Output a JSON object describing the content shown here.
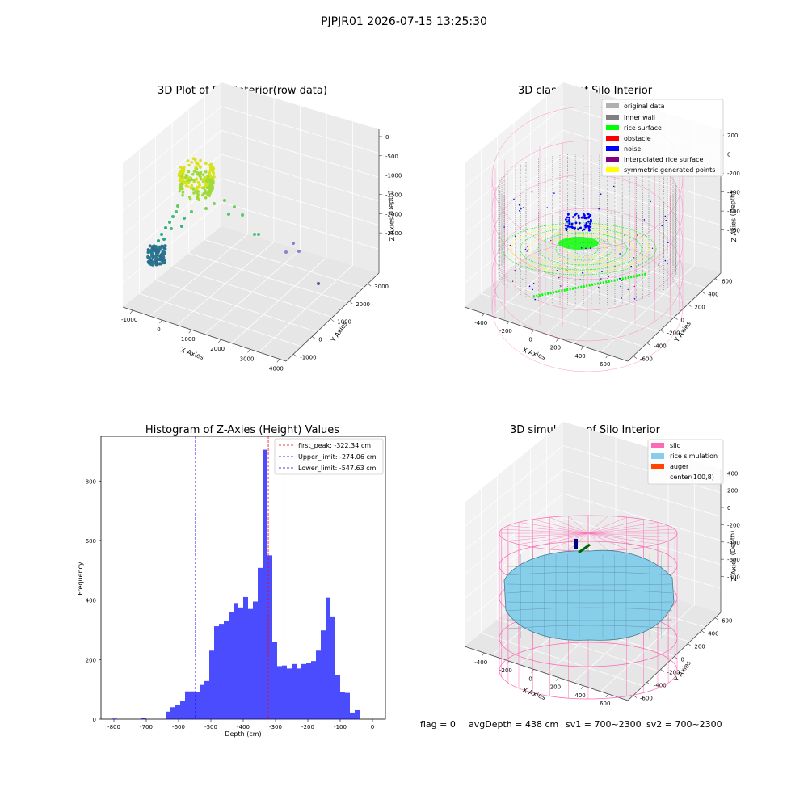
{
  "figure_title": "PJPJR01 2026-07-15 13:25:30",
  "footer": {
    "flag": "flag = 0",
    "avg_depth": "avgDepth = 438 cm",
    "sv1": "sv1 = 700~2300",
    "sv2": "sv2 = 700~2300"
  },
  "colors": {
    "silo": "#ff69b4",
    "rice_simulation": "#87ceeb",
    "auger": "#ff4500",
    "hist_bar": "#0000ff",
    "first_peak": "#ff0000",
    "limit": "#0000ff",
    "inner_wall": "#808080",
    "rice_surface": "#00ff00",
    "obstacle": "#ff0000",
    "noise": "#0000ff",
    "interpolated": "#800080",
    "symmetric": "#ffff00",
    "original": "#b0b0b0"
  },
  "chart_data": [
    {
      "type": "scatter",
      "title": "3D Plot of Silo Interior(row data)",
      "projection": "3d",
      "xlabel": "X Axies",
      "ylabel": "Y Axies",
      "zlabel": "Z Axies (Depth)",
      "x_ticks": [
        "-1000",
        "0",
        "1000",
        "2000",
        "3000",
        "4000"
      ],
      "y_ticks": [
        "-1000",
        "0",
        "1000",
        "2000",
        "3000"
      ],
      "z_ticks": [
        "0",
        "-500",
        "-1000",
        "-1500",
        "-2000",
        "-2500"
      ],
      "colormap": "viridis",
      "grid": true
    },
    {
      "type": "scatter",
      "title": "3D classify of Silo Interior",
      "projection": "3d",
      "xlabel": "X Axies",
      "ylabel": "Y Axies",
      "zlabel": "Z Axies (Depth)",
      "x_ticks": [
        "-400",
        "-200",
        "0",
        "200",
        "400",
        "600"
      ],
      "y_ticks": [
        "-600",
        "-400",
        "-200",
        "0",
        "200",
        "400",
        "600"
      ],
      "z_ticks": [
        "200",
        "0",
        "-200",
        "-400",
        "-600",
        "-800"
      ],
      "legend_position": "top-right",
      "legend": [
        "original data",
        "inner wall",
        "rice surface",
        "obstacle",
        "noise",
        "interpolated rice surface",
        "symmetric generated points"
      ],
      "grid": true
    },
    {
      "type": "bar",
      "title": "Histogram of Z-Axies (Height) Values",
      "xlabel": "Depth (cm)",
      "ylabel": "Frequency",
      "xlim": [
        -840,
        40
      ],
      "ylim": [
        0,
        950
      ],
      "x_ticks": [
        "-800",
        "-700",
        "-600",
        "-500",
        "-400",
        "-300",
        "-200",
        "-100",
        "0"
      ],
      "y_ticks": [
        "0",
        "200",
        "400",
        "600",
        "800"
      ],
      "bin_width": 15,
      "bins": [
        [
          -805,
          2
        ],
        [
          -715,
          5
        ],
        [
          -640,
          25
        ],
        [
          -625,
          40
        ],
        [
          -610,
          47
        ],
        [
          -595,
          60
        ],
        [
          -580,
          93
        ],
        [
          -565,
          93
        ],
        [
          -550,
          90
        ],
        [
          -535,
          115
        ],
        [
          -520,
          128
        ],
        [
          -505,
          230
        ],
        [
          -490,
          312
        ],
        [
          -475,
          320
        ],
        [
          -460,
          330
        ],
        [
          -445,
          360
        ],
        [
          -430,
          390
        ],
        [
          -415,
          375
        ],
        [
          -400,
          410
        ],
        [
          -385,
          370
        ],
        [
          -370,
          395
        ],
        [
          -355,
          508
        ],
        [
          -340,
          905
        ],
        [
          -325,
          550
        ],
        [
          -310,
          260
        ],
        [
          -295,
          178
        ],
        [
          -280,
          180
        ],
        [
          -265,
          170
        ],
        [
          -250,
          185
        ],
        [
          -235,
          170
        ],
        [
          -220,
          185
        ],
        [
          -205,
          190
        ],
        [
          -190,
          195
        ],
        [
          -175,
          230
        ],
        [
          -160,
          298
        ],
        [
          -145,
          408
        ],
        [
          -130,
          345
        ],
        [
          -115,
          148
        ],
        [
          -100,
          90
        ],
        [
          -85,
          88
        ],
        [
          -70,
          22
        ],
        [
          -55,
          30
        ]
      ],
      "lines": [
        {
          "label": "first_peak: -322.34 cm",
          "x": -322.34,
          "style": "red-dashed"
        },
        {
          "label": "Upper_limit: -274.06 cm",
          "x": -274.06,
          "style": "blue-dashed"
        },
        {
          "label": "Lower_limit: -547.63 cm",
          "x": -547.63,
          "style": "blue-dashed"
        }
      ],
      "legend_position": "top-right",
      "grid": false
    },
    {
      "type": "area",
      "title": "3D simulation of Silo Interior",
      "projection": "3d",
      "xlabel": "X Axies",
      "ylabel": "Y Axies",
      "zlabel": "Z Axies (Depth)",
      "x_ticks": [
        "-400",
        "-200",
        "0",
        "200",
        "400",
        "600"
      ],
      "y_ticks": [
        "-600",
        "-400",
        "-200",
        "0",
        "200",
        "400",
        "600"
      ],
      "z_ticks": [
        "400",
        "200",
        "0",
        "-200",
        "-400",
        "-600",
        "-800"
      ],
      "legend_position": "top-right",
      "legend": [
        "silo",
        "rice simulation",
        "auger",
        "center(100,8)"
      ],
      "grid": true
    }
  ]
}
